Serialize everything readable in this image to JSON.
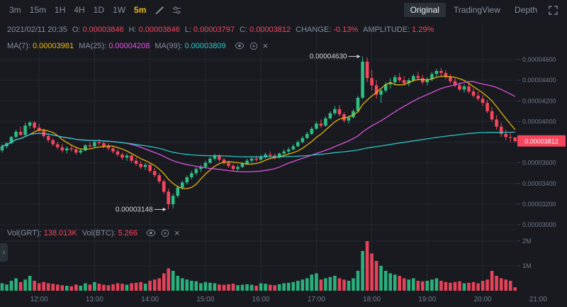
{
  "toolbar": {
    "timeframes": [
      "3m",
      "15m",
      "1H",
      "4H",
      "1D",
      "1W"
    ],
    "active_timeframe": "5m",
    "tabs": [
      "Original",
      "TradingView",
      "Depth"
    ],
    "active_tab": "Original"
  },
  "ohlc": {
    "datetime": "2021/02/11 20:35",
    "o_label": "O:",
    "o": "0.00003846",
    "h_label": "H:",
    "h": "0.00003846",
    "l_label": "L:",
    "l": "0.00003797",
    "c_label": "C:",
    "c": "0.00003812",
    "change_label": "CHANGE:",
    "change": "-0.13%",
    "amplitude_label": "AMPLITUDE:",
    "amplitude": "1.29%"
  },
  "ma": {
    "ma7_label": "MA(7):",
    "ma7": "0.00003981",
    "ma25_label": "MA(25):",
    "ma25": "0.00004208",
    "ma99_label": "MA(99):",
    "ma99": "0.00003809"
  },
  "volume_header": {
    "grt_label": "Vol(GRT):",
    "grt": "138.013K",
    "btc_label": "Vol(BTC):",
    "btc": "5.266"
  },
  "axes": {
    "price_ticks": [
      "0.00004600",
      "0.00004400",
      "0.00004200",
      "0.00004000",
      "0.00003800",
      "0.00003600",
      "0.00003400",
      "0.00003200",
      "0.00003000"
    ],
    "volume_ticks": [
      "2M",
      "1M"
    ],
    "time_ticks": [
      "12:00",
      "13:00",
      "14:00",
      "15:00",
      "16:00",
      "17:00",
      "18:00",
      "19:00",
      "20:00",
      "21:00"
    ],
    "current_price": "0.00003812"
  },
  "annotations": {
    "high_label": "0.00004630",
    "high_index": 78,
    "low_label": "0.00003148",
    "low_index": 36
  },
  "icons": {
    "close_glyph": "×",
    "toggle_glyph": "›"
  },
  "colors": {
    "up": "#2ebd85",
    "down": "#f6465d",
    "accent": "#f0b90b",
    "ma7": "#f0b90b",
    "ma25": "#e754e7",
    "ma99": "#2cc9c9",
    "bg": "#181a20",
    "text_muted": "#848e9c",
    "axis": "#707a8a"
  },
  "chart_data": {
    "type": "candlestick",
    "interval": "5m",
    "start_time": "11:20",
    "price_unit": 1e-08,
    "volume_unit": 1000,
    "overlays": [
      "MA(7)",
      "MA(25)",
      "MA(99)"
    ],
    "ylim": [
      3e-05,
      4.7e-05
    ],
    "volume_ylim": [
      0,
      2200000
    ],
    "legend_position": "top-left",
    "candles": [
      [
        3720,
        3780,
        3700,
        3760,
        300
      ],
      [
        3760,
        3800,
        3740,
        3790,
        250
      ],
      [
        3790,
        3860,
        3780,
        3850,
        400
      ],
      [
        3850,
        3920,
        3840,
        3900,
        500
      ],
      [
        3900,
        3950,
        3860,
        3870,
        350
      ],
      [
        3870,
        3990,
        3860,
        3960,
        450
      ],
      [
        3960,
        4005,
        3930,
        3990,
        600
      ],
      [
        3990,
        4000,
        3920,
        3940,
        400
      ],
      [
        3940,
        3980,
        3900,
        3910,
        300
      ],
      [
        3910,
        3930,
        3840,
        3860,
        350
      ],
      [
        3860,
        3880,
        3800,
        3820,
        300
      ],
      [
        3820,
        3840,
        3760,
        3780,
        280
      ],
      [
        3780,
        3800,
        3730,
        3750,
        250
      ],
      [
        3750,
        3780,
        3700,
        3720,
        220
      ],
      [
        3720,
        3760,
        3690,
        3740,
        200
      ],
      [
        3740,
        3770,
        3710,
        3730,
        180
      ],
      [
        3730,
        3750,
        3680,
        3700,
        250
      ],
      [
        3700,
        3740,
        3680,
        3720,
        200
      ],
      [
        3720,
        3780,
        3710,
        3770,
        300
      ],
      [
        3770,
        3800,
        3740,
        3760,
        250
      ],
      [
        3760,
        3820,
        3750,
        3800,
        350
      ],
      [
        3800,
        3830,
        3770,
        3790,
        280
      ],
      [
        3790,
        3810,
        3740,
        3760,
        240
      ],
      [
        3760,
        3790,
        3720,
        3740,
        220
      ],
      [
        3740,
        3760,
        3690,
        3710,
        260
      ],
      [
        3710,
        3730,
        3660,
        3680,
        300
      ],
      [
        3680,
        3700,
        3630,
        3650,
        280
      ],
      [
        3650,
        3690,
        3620,
        3670,
        240
      ],
      [
        3670,
        3680,
        3600,
        3620,
        300
      ],
      [
        3620,
        3650,
        3570,
        3590,
        320
      ],
      [
        3590,
        3620,
        3540,
        3560,
        350
      ],
      [
        3560,
        3600,
        3530,
        3580,
        280
      ],
      [
        3580,
        3590,
        3500,
        3520,
        400
      ],
      [
        3520,
        3550,
        3460,
        3480,
        450
      ],
      [
        3480,
        3500,
        3400,
        3420,
        500
      ],
      [
        3420,
        3440,
        3300,
        3320,
        700
      ],
      [
        3320,
        3350,
        3148,
        3200,
        900
      ],
      [
        3200,
        3300,
        3160,
        3280,
        800
      ],
      [
        3280,
        3380,
        3260,
        3360,
        600
      ],
      [
        3360,
        3430,
        3340,
        3410,
        500
      ],
      [
        3410,
        3480,
        3390,
        3460,
        450
      ],
      [
        3460,
        3520,
        3440,
        3500,
        400
      ],
      [
        3500,
        3560,
        3480,
        3540,
        380
      ],
      [
        3540,
        3580,
        3510,
        3560,
        300
      ],
      [
        3560,
        3620,
        3550,
        3600,
        350
      ],
      [
        3600,
        3660,
        3590,
        3640,
        320
      ],
      [
        3640,
        3690,
        3620,
        3670,
        300
      ],
      [
        3670,
        3680,
        3610,
        3630,
        250
      ],
      [
        3630,
        3650,
        3580,
        3600,
        240
      ],
      [
        3600,
        3620,
        3550,
        3570,
        260
      ],
      [
        3570,
        3590,
        3520,
        3540,
        280
      ],
      [
        3540,
        3580,
        3520,
        3560,
        220
      ],
      [
        3560,
        3610,
        3550,
        3590,
        240
      ],
      [
        3590,
        3640,
        3580,
        3620,
        260
      ],
      [
        3620,
        3660,
        3600,
        3640,
        240
      ],
      [
        3640,
        3670,
        3610,
        3630,
        200
      ],
      [
        3630,
        3680,
        3620,
        3660,
        300
      ],
      [
        3660,
        3700,
        3640,
        3680,
        280
      ],
      [
        3680,
        3710,
        3650,
        3670,
        240
      ],
      [
        3670,
        3690,
        3630,
        3650,
        220
      ],
      [
        3650,
        3700,
        3640,
        3690,
        260
      ],
      [
        3690,
        3730,
        3670,
        3710,
        300
      ],
      [
        3710,
        3750,
        3690,
        3730,
        320
      ],
      [
        3730,
        3780,
        3720,
        3760,
        350
      ],
      [
        3760,
        3820,
        3750,
        3800,
        400
      ],
      [
        3800,
        3860,
        3790,
        3840,
        450
      ],
      [
        3840,
        3900,
        3830,
        3880,
        500
      ],
      [
        3880,
        3950,
        3870,
        3930,
        650
      ],
      [
        3930,
        4000,
        3920,
        3980,
        700
      ],
      [
        3980,
        4020,
        3940,
        3960,
        450
      ],
      [
        3960,
        4050,
        3950,
        4030,
        500
      ],
      [
        4030,
        4100,
        4020,
        4080,
        550
      ],
      [
        4080,
        4150,
        4060,
        4120,
        600
      ],
      [
        4120,
        4160,
        4050,
        4070,
        500
      ],
      [
        4070,
        4090,
        3990,
        4010,
        450
      ],
      [
        4010,
        4060,
        3980,
        4040,
        400
      ],
      [
        4040,
        4120,
        4030,
        4100,
        500
      ],
      [
        4100,
        4250,
        4090,
        4230,
        800
      ],
      [
        4230,
        4630,
        4220,
        4580,
        1600
      ],
      [
        4580,
        4620,
        4380,
        4420,
        2000
      ],
      [
        4420,
        4500,
        4300,
        4350,
        1500
      ],
      [
        4350,
        4400,
        4220,
        4260,
        1200
      ],
      [
        4260,
        4320,
        4180,
        4300,
        1000
      ],
      [
        4300,
        4380,
        4280,
        4360,
        800
      ],
      [
        4360,
        4420,
        4320,
        4380,
        700
      ],
      [
        4380,
        4450,
        4360,
        4430,
        650
      ],
      [
        4430,
        4470,
        4380,
        4400,
        600
      ],
      [
        4400,
        4440,
        4350,
        4370,
        500
      ],
      [
        4370,
        4420,
        4340,
        4400,
        450
      ],
      [
        4400,
        4460,
        4380,
        4440,
        500
      ],
      [
        4440,
        4480,
        4400,
        4420,
        400
      ],
      [
        4420,
        4450,
        4360,
        4380,
        380
      ],
      [
        4380,
        4430,
        4350,
        4410,
        400
      ],
      [
        4410,
        4480,
        4390,
        4460,
        450
      ],
      [
        4460,
        4510,
        4430,
        4490,
        500
      ],
      [
        4490,
        4520,
        4440,
        4470,
        400
      ],
      [
        4470,
        4500,
        4410,
        4430,
        350
      ],
      [
        4430,
        4460,
        4370,
        4390,
        320
      ],
      [
        4390,
        4420,
        4330,
        4350,
        350
      ],
      [
        4350,
        4380,
        4290,
        4310,
        380
      ],
      [
        4310,
        4360,
        4280,
        4340,
        300
      ],
      [
        4340,
        4370,
        4270,
        4290,
        320
      ],
      [
        4290,
        4320,
        4230,
        4250,
        350
      ],
      [
        4250,
        4290,
        4200,
        4220,
        300
      ],
      [
        4220,
        4260,
        4150,
        4180,
        400
      ],
      [
        4180,
        4210,
        4080,
        4100,
        450
      ],
      [
        4100,
        4140,
        4000,
        4020,
        800
      ],
      [
        4020,
        4060,
        3920,
        3950,
        600
      ],
      [
        3950,
        3990,
        3850,
        3880,
        500
      ],
      [
        3880,
        3920,
        3820,
        3850,
        450
      ],
      [
        3850,
        3890,
        3800,
        3846,
        400
      ],
      [
        3846,
        3846,
        3797,
        3812,
        138.013
      ]
    ]
  }
}
